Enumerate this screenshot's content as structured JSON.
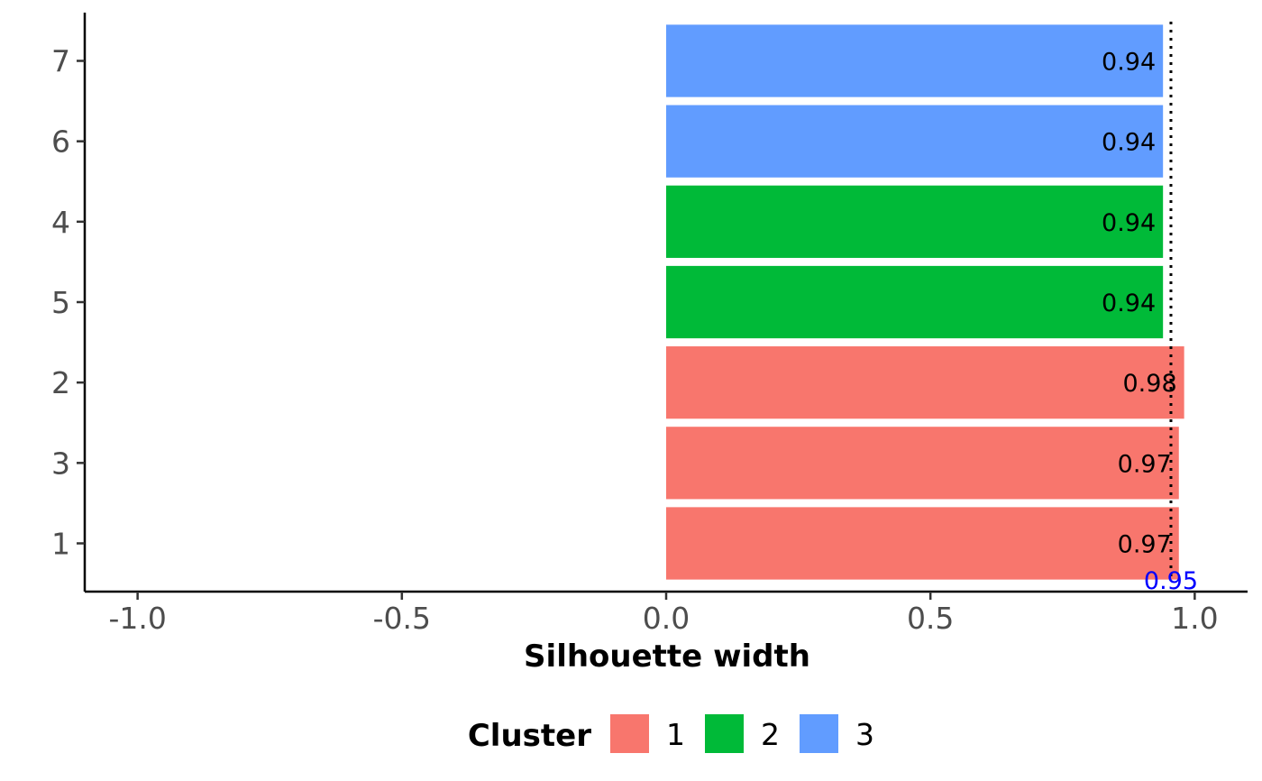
{
  "chart_data": {
    "type": "bar",
    "orientation": "horizontal",
    "xlabel": "Silhouette width",
    "ylabel": "",
    "xlim": [
      -1.1,
      1.1
    ],
    "x_ticks": [
      -1.0,
      -0.5,
      0.0,
      0.5,
      1.0
    ],
    "x_tick_labels": [
      "-1.0",
      "-0.5",
      "0.0",
      "0.5",
      "1.0"
    ],
    "categories": [
      "1",
      "3",
      "2",
      "5",
      "4",
      "6",
      "7"
    ],
    "values": [
      0.97,
      0.97,
      0.98,
      0.94,
      0.94,
      0.94,
      0.94
    ],
    "value_labels": [
      "0.97",
      "0.97",
      "0.98",
      "0.94",
      "0.94",
      "0.94",
      "0.94"
    ],
    "clusters": [
      "1",
      "1",
      "1",
      "2",
      "2",
      "3",
      "3"
    ],
    "mean_line": {
      "value": 0.955,
      "label": "0.95",
      "style": "dotted",
      "label_color": "#0000ff"
    },
    "legend": {
      "title": "Cluster",
      "placement": "bottom",
      "entries": [
        {
          "name": "1",
          "color": "#f8766d"
        },
        {
          "name": "2",
          "color": "#00ba38"
        },
        {
          "name": "3",
          "color": "#619cff"
        }
      ]
    },
    "grid": false
  }
}
